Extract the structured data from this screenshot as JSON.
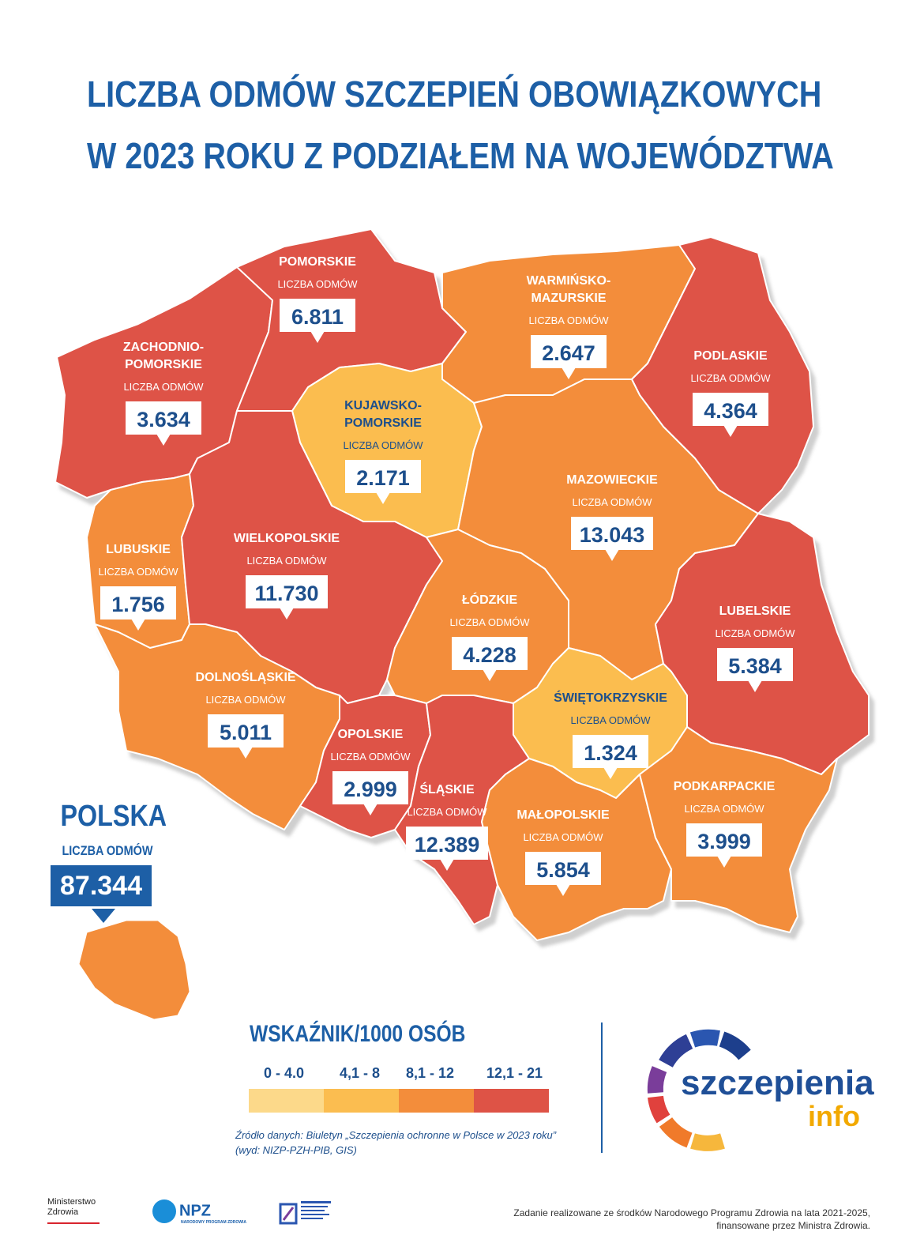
{
  "title": {
    "line1": "LICZBA ODMÓW SZCZEPIEŃ OBOWIĄZKOWYCH",
    "line2": "W 2023 ROKU Z PODZIAŁEM NA WOJEWÓDZTWA"
  },
  "label_common": "LICZBA ODMÓW",
  "regions": [
    {
      "id": "pomorskie",
      "name": "POMORSKIE",
      "value": "6.811",
      "category": "12,1 - 21"
    },
    {
      "id": "warminsko",
      "name": "WARMIŃSKO-\nMAZURSKIE",
      "value": "2.647",
      "category": "8,1 - 12"
    },
    {
      "id": "podlaskie",
      "name": "PODLASKIE",
      "value": "4.364",
      "category": "12,1 - 21"
    },
    {
      "id": "zachodnio",
      "name": "ZACHODNIO-\nPOMORSKIE",
      "value": "3.634",
      "category": "12,1 - 21"
    },
    {
      "id": "kujawsko",
      "name": "KUJAWSKO-\nPOMORSKIE",
      "value": "2.171",
      "category": "4,1 - 8"
    },
    {
      "id": "mazowieckie",
      "name": "MAZOWIECKIE",
      "value": "13.043",
      "category": "8,1 - 12"
    },
    {
      "id": "lubuskie",
      "name": "LUBUSKIE",
      "value": "1.756",
      "category": "8,1 - 12"
    },
    {
      "id": "wielkopolskie",
      "name": "WIELKOPOLSKIE",
      "value": "11.730",
      "category": "12,1 - 21"
    },
    {
      "id": "lodzkie",
      "name": "ŁÓDZKIE",
      "value": "4.228",
      "category": "8,1 - 12"
    },
    {
      "id": "lubelskie",
      "name": "LUBELSKIE",
      "value": "5.384",
      "category": "12,1 - 21"
    },
    {
      "id": "dolnoslaskie",
      "name": "DOLNOŚLĄSKIE",
      "value": "5.011",
      "category": "8,1 - 12"
    },
    {
      "id": "swietokrzyskie",
      "name": "ŚWIĘTOKRZYSKIE",
      "value": "1.324",
      "category": "4,1 - 8"
    },
    {
      "id": "opolskie",
      "name": "OPOLSKIE",
      "value": "2.999",
      "category": "12,1 - 21"
    },
    {
      "id": "slaskie",
      "name": "ŚLĄSKIE",
      "value": "12.389",
      "category": "12,1 - 21"
    },
    {
      "id": "malopolskie",
      "name": "MAŁOPOLSKIE",
      "value": "5.854",
      "category": "8,1 - 12"
    },
    {
      "id": "podkarpackie",
      "name": "PODKARPACKIE",
      "value": "3.999",
      "category": "8,1 - 12"
    }
  ],
  "polska": {
    "title": "POLSKA",
    "label": "LICZBA ODMÓW",
    "value": "87.344"
  },
  "legend": {
    "title": "WSKAŹNIK/1000 OSÓB",
    "items": [
      {
        "label": "0 - 4.0",
        "color": "#fcd98a"
      },
      {
        "label": "4,1 - 8",
        "color": "#fbbd50"
      },
      {
        "label": "8,1 - 12",
        "color": "#f38d3b"
      },
      {
        "label": "12,1 - 21",
        "color": "#de5346"
      }
    ]
  },
  "source": {
    "line1": "Źródło danych: Biuletyn „Szczepienia ochronne w Polsce w 2023 roku”",
    "line2": "(wyd: NIZP-PZH-PIB, GIS)"
  },
  "brand": {
    "part1": "szczepienia",
    "part2": "info"
  },
  "footer": {
    "mz_line1": "Ministerstwo",
    "mz_line2": "Zdrowia",
    "npz": "NPZ",
    "npz_sub": "NARODOWY PROGRAM ZDROWIA",
    "funding_line1": "Zadanie realizowane ze środków Narodowego Programu Zdrowia na lata 2021-2025,",
    "funding_line2": "finansowane przez Ministra Zdrowia."
  },
  "colors": {
    "red": "#de5346",
    "orange": "#f38d3b",
    "yellow": "#fbbd50",
    "light": "#fcd98a",
    "blue": "#1d5fa6"
  }
}
